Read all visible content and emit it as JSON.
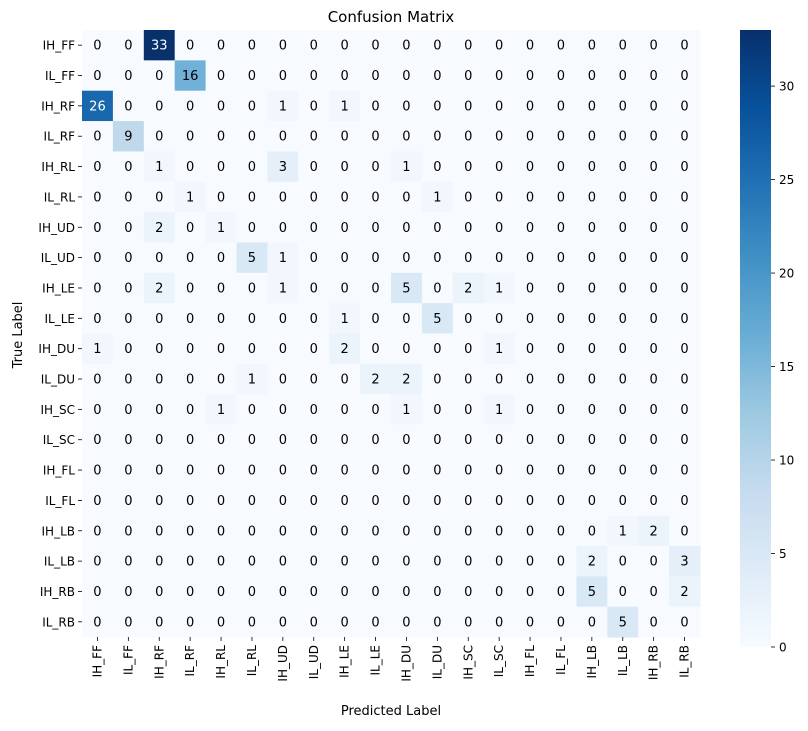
{
  "chart_data": {
    "type": "heatmap",
    "title": "Confusion Matrix",
    "xlabel": "Predicted Label",
    "ylabel": "True Label",
    "x_categories": [
      "IH_FF",
      "IL_FF",
      "IH_RF",
      "IL_RF",
      "IH_RL",
      "IL_RL",
      "IH_UD",
      "IL_UD",
      "IH_LE",
      "IL_LE",
      "IH_DU",
      "IL_DU",
      "IH_SC",
      "IL_SC",
      "IH_FL",
      "IL_FL",
      "IH_LB",
      "IL_LB",
      "IH_RB",
      "IL_RB"
    ],
    "y_categories": [
      "IH_FF",
      "IL_FF",
      "IH_RF",
      "IL_RF",
      "IH_RL",
      "IL_RL",
      "IH_UD",
      "IL_UD",
      "IH_LE",
      "IL_LE",
      "IH_DU",
      "IL_DU",
      "IH_SC",
      "IL_SC",
      "IH_FL",
      "IL_FL",
      "IH_LB",
      "IL_LB",
      "IH_RB",
      "IL_RB"
    ],
    "values": [
      [
        0,
        0,
        33,
        0,
        0,
        0,
        0,
        0,
        0,
        0,
        0,
        0,
        0,
        0,
        0,
        0,
        0,
        0,
        0,
        0
      ],
      [
        0,
        0,
        0,
        16,
        0,
        0,
        0,
        0,
        0,
        0,
        0,
        0,
        0,
        0,
        0,
        0,
        0,
        0,
        0,
        0
      ],
      [
        26,
        0,
        0,
        0,
        0,
        0,
        1,
        0,
        1,
        0,
        0,
        0,
        0,
        0,
        0,
        0,
        0,
        0,
        0,
        0
      ],
      [
        0,
        9,
        0,
        0,
        0,
        0,
        0,
        0,
        0,
        0,
        0,
        0,
        0,
        0,
        0,
        0,
        0,
        0,
        0,
        0
      ],
      [
        0,
        0,
        1,
        0,
        0,
        0,
        3,
        0,
        0,
        0,
        1,
        0,
        0,
        0,
        0,
        0,
        0,
        0,
        0,
        0
      ],
      [
        0,
        0,
        0,
        1,
        0,
        0,
        0,
        0,
        0,
        0,
        0,
        1,
        0,
        0,
        0,
        0,
        0,
        0,
        0,
        0
      ],
      [
        0,
        0,
        2,
        0,
        1,
        0,
        0,
        0,
        0,
        0,
        0,
        0,
        0,
        0,
        0,
        0,
        0,
        0,
        0,
        0
      ],
      [
        0,
        0,
        0,
        0,
        0,
        5,
        1,
        0,
        0,
        0,
        0,
        0,
        0,
        0,
        0,
        0,
        0,
        0,
        0,
        0
      ],
      [
        0,
        0,
        2,
        0,
        0,
        0,
        1,
        0,
        0,
        0,
        5,
        0,
        2,
        1,
        0,
        0,
        0,
        0,
        0,
        0
      ],
      [
        0,
        0,
        0,
        0,
        0,
        0,
        0,
        0,
        1,
        0,
        0,
        5,
        0,
        0,
        0,
        0,
        0,
        0,
        0,
        0
      ],
      [
        1,
        0,
        0,
        0,
        0,
        0,
        0,
        0,
        2,
        0,
        0,
        0,
        0,
        1,
        0,
        0,
        0,
        0,
        0,
        0
      ],
      [
        0,
        0,
        0,
        0,
        0,
        1,
        0,
        0,
        0,
        2,
        2,
        0,
        0,
        0,
        0,
        0,
        0,
        0,
        0,
        0
      ],
      [
        0,
        0,
        0,
        0,
        1,
        0,
        0,
        0,
        0,
        0,
        1,
        0,
        0,
        1,
        0,
        0,
        0,
        0,
        0,
        0
      ],
      [
        0,
        0,
        0,
        0,
        0,
        0,
        0,
        0,
        0,
        0,
        0,
        0,
        0,
        0,
        0,
        0,
        0,
        0,
        0,
        0
      ],
      [
        0,
        0,
        0,
        0,
        0,
        0,
        0,
        0,
        0,
        0,
        0,
        0,
        0,
        0,
        0,
        0,
        0,
        0,
        0,
        0
      ],
      [
        0,
        0,
        0,
        0,
        0,
        0,
        0,
        0,
        0,
        0,
        0,
        0,
        0,
        0,
        0,
        0,
        0,
        0,
        0,
        0
      ],
      [
        0,
        0,
        0,
        0,
        0,
        0,
        0,
        0,
        0,
        0,
        0,
        0,
        0,
        0,
        0,
        0,
        0,
        1,
        2,
        0
      ],
      [
        0,
        0,
        0,
        0,
        0,
        0,
        0,
        0,
        0,
        0,
        0,
        0,
        0,
        0,
        0,
        0,
        2,
        0,
        0,
        3
      ],
      [
        0,
        0,
        0,
        0,
        0,
        0,
        0,
        0,
        0,
        0,
        0,
        0,
        0,
        0,
        0,
        0,
        5,
        0,
        0,
        2
      ],
      [
        0,
        0,
        0,
        0,
        0,
        0,
        0,
        0,
        0,
        0,
        0,
        0,
        0,
        0,
        0,
        0,
        0,
        5,
        0,
        0
      ]
    ],
    "colorbar": {
      "range": [
        0,
        33
      ],
      "ticks": [
        0,
        5,
        10,
        15,
        20,
        25,
        30
      ],
      "colormap": "Blues"
    },
    "colors": {
      "low": "#f7fbff",
      "high": "#08306b",
      "text_dark": "#000000",
      "text_light": "#ffffff"
    }
  }
}
